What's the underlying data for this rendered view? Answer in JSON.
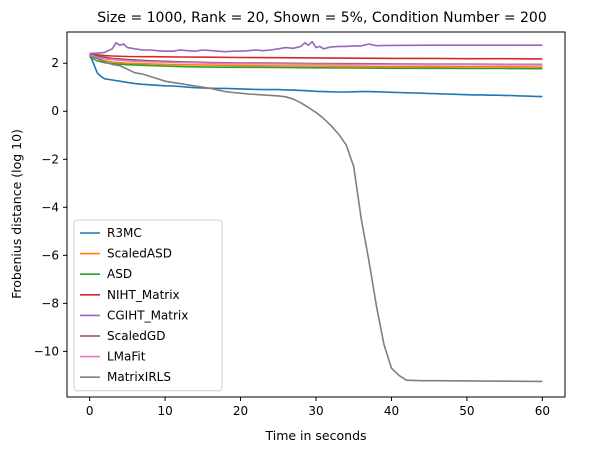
{
  "chart_data": {
    "type": "line",
    "title": "Size = 1000, Rank = 20, Shown = 5%, Condition Number = 200",
    "xlabel": "Time in seconds",
    "ylabel": "Frobenius distance (log 10)",
    "xlim": [
      -3,
      63
    ],
    "ylim": [
      -11.9,
      3.3
    ],
    "xticks": [
      0,
      10,
      20,
      30,
      40,
      50,
      60
    ],
    "yticks": [
      -10,
      -8,
      -6,
      -4,
      -2,
      0,
      2
    ],
    "grid": false,
    "legend_position": "lower-left",
    "series": [
      {
        "name": "R3MC",
        "color": "#1f77b4",
        "x": [
          0,
          0.5,
          1,
          1.5,
          2,
          3,
          4,
          5,
          6,
          7,
          8,
          9,
          10,
          11,
          12,
          13,
          14,
          15,
          16,
          17,
          18,
          19,
          20,
          21,
          22,
          23,
          24,
          25,
          26,
          27,
          28,
          29,
          30,
          31,
          32,
          33,
          34,
          35,
          36,
          37,
          38,
          39,
          40,
          41,
          42,
          43,
          44,
          45,
          46,
          47,
          48,
          49,
          50,
          51,
          52,
          53,
          54,
          55,
          56,
          57,
          58,
          59,
          60
        ],
        "y": [
          2.35,
          2.0,
          1.6,
          1.45,
          1.35,
          1.3,
          1.25,
          1.2,
          1.15,
          1.12,
          1.1,
          1.08,
          1.06,
          1.05,
          1.03,
          1.0,
          0.98,
          0.97,
          0.96,
          0.95,
          0.95,
          0.94,
          0.93,
          0.92,
          0.91,
          0.9,
          0.9,
          0.9,
          0.89,
          0.88,
          0.87,
          0.85,
          0.83,
          0.82,
          0.81,
          0.8,
          0.8,
          0.81,
          0.82,
          0.82,
          0.81,
          0.8,
          0.79,
          0.78,
          0.77,
          0.76,
          0.75,
          0.74,
          0.73,
          0.72,
          0.71,
          0.7,
          0.69,
          0.68,
          0.68,
          0.67,
          0.67,
          0.66,
          0.65,
          0.64,
          0.63,
          0.62,
          0.61
        ]
      },
      {
        "name": "ScaledASD",
        "color": "#ff7f0e",
        "x": [
          0,
          1,
          2,
          3,
          5,
          8,
          12,
          16,
          20,
          25,
          30,
          35,
          40,
          45,
          50,
          55,
          60
        ],
        "y": [
          2.3,
          2.2,
          2.1,
          2.05,
          2.0,
          1.97,
          1.94,
          1.92,
          1.9,
          1.89,
          1.88,
          1.87,
          1.86,
          1.86,
          1.85,
          1.85,
          1.84
        ]
      },
      {
        "name": "ASD",
        "color": "#2ca02c",
        "x": [
          0,
          1,
          2,
          3,
          5,
          8,
          12,
          16,
          20,
          25,
          30,
          35,
          40,
          45,
          50,
          55,
          60
        ],
        "y": [
          2.25,
          2.1,
          2.02,
          1.98,
          1.94,
          1.9,
          1.86,
          1.84,
          1.83,
          1.82,
          1.81,
          1.8,
          1.79,
          1.79,
          1.78,
          1.78,
          1.77
        ]
      },
      {
        "name": "NIHT_Matrix",
        "color": "#d62728",
        "x": [
          0,
          1,
          2,
          3,
          5,
          8,
          12,
          16,
          20,
          25,
          30,
          35,
          40,
          45,
          50,
          55,
          60
        ],
        "y": [
          2.4,
          2.35,
          2.32,
          2.3,
          2.28,
          2.27,
          2.26,
          2.25,
          2.24,
          2.23,
          2.22,
          2.21,
          2.2,
          2.2,
          2.19,
          2.19,
          2.18
        ]
      },
      {
        "name": "CGIHT_Matrix",
        "color": "#9467bd",
        "x": [
          0,
          1,
          2,
          3,
          3.5,
          4,
          4.5,
          5,
          6,
          7,
          8,
          9,
          10,
          11,
          12,
          13,
          14,
          15,
          16,
          17,
          18,
          19,
          20,
          21,
          22,
          23,
          24,
          25,
          26,
          27,
          28,
          28.5,
          29,
          29.5,
          30,
          30.5,
          31,
          32,
          33,
          34,
          35,
          36,
          37,
          38,
          40,
          45,
          50,
          55,
          60
        ],
        "y": [
          2.4,
          2.42,
          2.45,
          2.6,
          2.85,
          2.75,
          2.8,
          2.65,
          2.6,
          2.55,
          2.55,
          2.52,
          2.5,
          2.5,
          2.55,
          2.52,
          2.5,
          2.55,
          2.53,
          2.5,
          2.48,
          2.5,
          2.5,
          2.52,
          2.55,
          2.52,
          2.55,
          2.6,
          2.65,
          2.62,
          2.7,
          2.85,
          2.75,
          2.9,
          2.65,
          2.7,
          2.6,
          2.68,
          2.7,
          2.7,
          2.72,
          2.72,
          2.8,
          2.73,
          2.74,
          2.75,
          2.75,
          2.75,
          2.75
        ]
      },
      {
        "name": "ScaledGD",
        "color": "#8c564b",
        "x": [
          0,
          1,
          2,
          3,
          5,
          8,
          12,
          16,
          20,
          25,
          30,
          35,
          40,
          45,
          50,
          55,
          60
        ],
        "y": [
          2.38,
          2.3,
          2.25,
          2.2,
          2.15,
          2.1,
          2.06,
          2.03,
          2.01,
          2.0,
          1.99,
          1.98,
          1.97,
          1.96,
          1.96,
          1.95,
          1.95
        ]
      },
      {
        "name": "LMaFit",
        "color": "#e377c2",
        "x": [
          0,
          1,
          2,
          3,
          5,
          8,
          12,
          16,
          20,
          25,
          30,
          35,
          40,
          45,
          50,
          55,
          60
        ],
        "y": [
          2.35,
          2.25,
          2.18,
          2.15,
          2.1,
          2.06,
          2.03,
          2.0,
          1.98,
          1.97,
          1.96,
          1.95,
          1.95,
          1.94,
          1.94,
          1.93,
          1.93
        ]
      },
      {
        "name": "MatrixIRLS",
        "color": "#7f7f7f",
        "x": [
          0,
          1,
          2,
          3,
          4,
          5,
          6,
          7,
          8,
          9,
          10,
          11,
          12,
          13,
          14,
          15,
          16,
          17,
          18,
          19,
          20,
          21,
          22,
          23,
          24,
          25,
          26,
          27,
          28,
          29,
          30,
          31,
          32,
          33,
          34,
          35,
          36,
          37,
          38,
          39,
          40,
          41,
          42,
          44,
          46,
          50,
          55,
          60
        ],
        "y": [
          2.3,
          2.2,
          2.05,
          1.95,
          1.9,
          1.75,
          1.6,
          1.55,
          1.45,
          1.35,
          1.25,
          1.2,
          1.15,
          1.1,
          1.05,
          1.0,
          0.95,
          0.88,
          0.82,
          0.78,
          0.75,
          0.72,
          0.7,
          0.68,
          0.66,
          0.64,
          0.6,
          0.5,
          0.35,
          0.15,
          -0.05,
          -0.3,
          -0.6,
          -0.95,
          -1.4,
          -2.3,
          -4.5,
          -6.2,
          -8.1,
          -9.7,
          -10.7,
          -11.0,
          -11.2,
          -11.22,
          -11.22,
          -11.23,
          -11.24,
          -11.25
        ]
      }
    ]
  }
}
